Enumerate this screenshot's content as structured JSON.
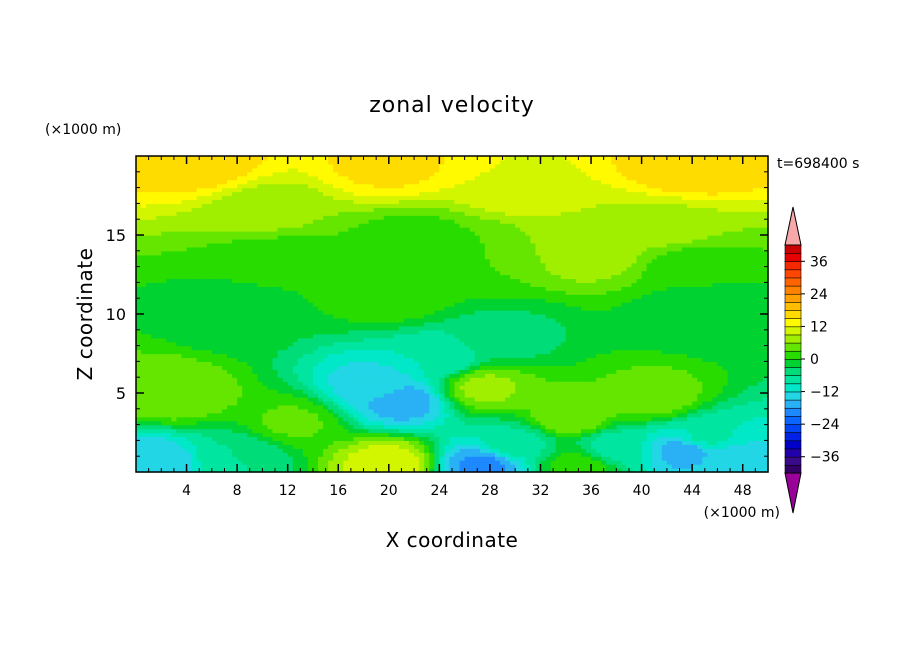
{
  "chart_data": {
    "type": "heatmap",
    "title": "zonal velocity",
    "xlabel": "X coordinate",
    "ylabel": "Z coordinate",
    "x_unit": "(×1000 m)",
    "y_unit": "(×1000 m)",
    "time_label": "t=698400 s",
    "xlim": [
      0,
      50
    ],
    "ylim": [
      0,
      20
    ],
    "x_ticks": [
      4,
      8,
      12,
      16,
      20,
      24,
      28,
      32,
      36,
      40,
      44,
      48
    ],
    "y_ticks": [
      5,
      10,
      15
    ],
    "colorbar": {
      "levels": [
        -42,
        -39,
        -36,
        -33,
        -30,
        -27,
        -24,
        -21,
        -18,
        -15,
        -12,
        -9,
        -6,
        -3,
        0,
        3,
        6,
        9,
        12,
        15,
        18,
        21,
        24,
        27,
        30,
        33,
        36,
        39,
        42
      ],
      "labeled_levels": [
        -36,
        -24,
        -12,
        0,
        12,
        24,
        36
      ],
      "extend": "both",
      "colors": [
        "#330066",
        "#3a0a8a",
        "#2200aa",
        "#0000c8",
        "#0022e6",
        "#0044f5",
        "#0a66ff",
        "#1e88ff",
        "#2ab0f5",
        "#22d6e6",
        "#00e8c8",
        "#00e6a0",
        "#00dc78",
        "#00d232",
        "#28dc00",
        "#64e600",
        "#a0ee00",
        "#d2f500",
        "#fffa00",
        "#ffdc00",
        "#ffbe00",
        "#ffa000",
        "#ff8200",
        "#ff6400",
        "#ff4600",
        "#f52800",
        "#e60000",
        "#cc0000"
      ],
      "under_color": "#990099",
      "over_color": "#f8a8a8"
    },
    "grid": false,
    "legend": "colorbar-right",
    "field_features": [
      {
        "x": 5,
        "z": 19.5,
        "value": 17
      },
      {
        "x": 20,
        "z": 19.6,
        "value": 16
      },
      {
        "x": 44,
        "z": 19.4,
        "value": 18
      },
      {
        "x": 30,
        "z": 18.5,
        "value": 12
      },
      {
        "x": 10,
        "z": 16.5,
        "value": 7
      },
      {
        "x": 42,
        "z": 15.5,
        "value": 8
      },
      {
        "x": 36,
        "z": 14.2,
        "value": 8.5
      },
      {
        "x": 27,
        "z": 13.5,
        "value": 3
      },
      {
        "x": 11,
        "z": 13.4,
        "value": 0.5
      },
      {
        "x": 22,
        "z": 14.5,
        "value": 1.5
      },
      {
        "x": 44,
        "z": 13.2,
        "value": 1.5
      },
      {
        "x": 20,
        "z": 11.2,
        "value": 2
      },
      {
        "x": 8,
        "z": 9.8,
        "value": -2
      },
      {
        "x": 29,
        "z": 8.5,
        "value": -4
      },
      {
        "x": 45,
        "z": 10.2,
        "value": -3
      },
      {
        "x": 19,
        "z": 5.4,
        "value": -14
      },
      {
        "x": 21,
        "z": 4.5,
        "value": -17
      },
      {
        "x": 24,
        "z": 7.2,
        "value": -9
      },
      {
        "x": 3,
        "z": 5.0,
        "value": 6
      },
      {
        "x": 27.5,
        "z": 5.4,
        "value": 7
      },
      {
        "x": 34.5,
        "z": 3.5,
        "value": 6
      },
      {
        "x": 41,
        "z": 4.7,
        "value": 5
      },
      {
        "x": 12.5,
        "z": 3.2,
        "value": 3.5
      },
      {
        "x": 30,
        "z": 1.8,
        "value": -7
      },
      {
        "x": 38,
        "z": 1.6,
        "value": -8
      },
      {
        "x": 45,
        "z": 2.2,
        "value": -8
      },
      {
        "x": 1.5,
        "z": 0.6,
        "value": -15
      },
      {
        "x": 20,
        "z": 0.6,
        "value": 11
      },
      {
        "x": 27.5,
        "z": 0.5,
        "value": -19
      },
      {
        "x": 47,
        "z": 0.8,
        "value": -14
      },
      {
        "x": 43.5,
        "z": 1.4,
        "value": -17
      },
      {
        "x": 35,
        "z": 0.4,
        "value": 2
      },
      {
        "x": 8,
        "z": 1.0,
        "value": -6
      }
    ]
  }
}
